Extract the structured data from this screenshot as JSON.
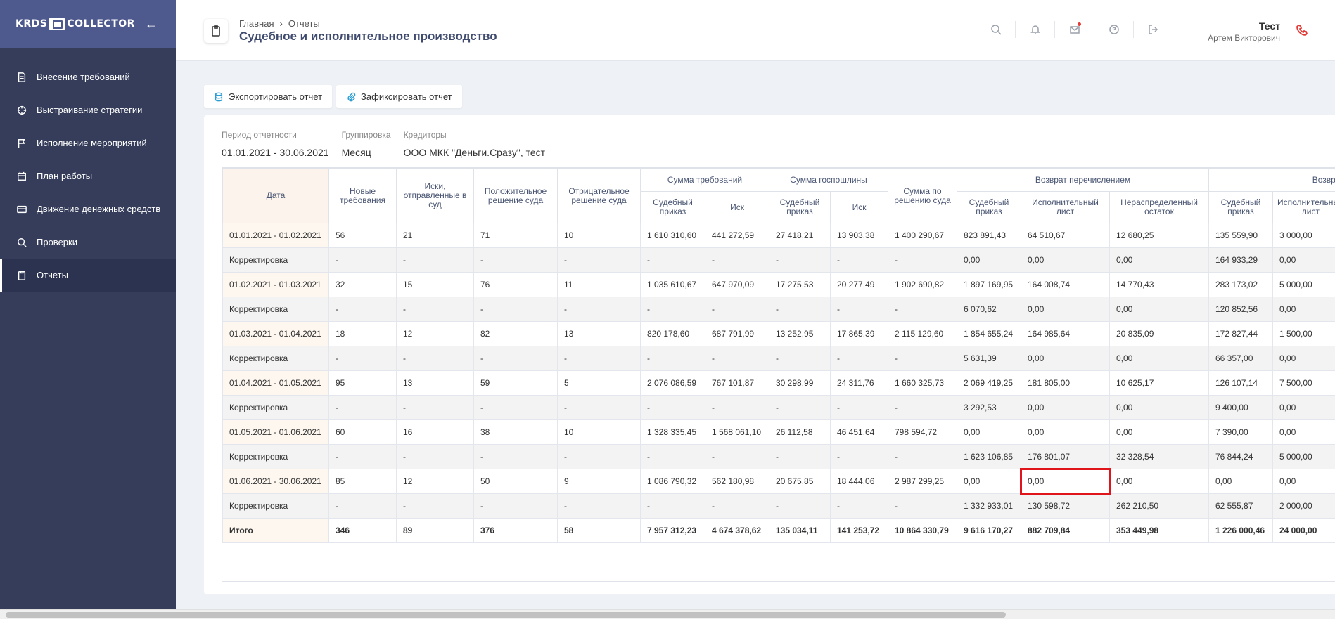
{
  "brand": {
    "left": "KRDS",
    "right": "COLLECTOR"
  },
  "sidebar": {
    "items": [
      {
        "label": "Внесение требований",
        "icon": "document-icon"
      },
      {
        "label": "Выстраивание стратегии",
        "icon": "crosshair-icon"
      },
      {
        "label": "Исполнение мероприятий",
        "icon": "flag-icon"
      },
      {
        "label": "План работы",
        "icon": "calendar-icon"
      },
      {
        "label": "Движение денежных средств",
        "icon": "card-icon"
      },
      {
        "label": "Проверки",
        "icon": "search-icon"
      },
      {
        "label": "Отчеты",
        "icon": "clipboard-icon",
        "active": true
      }
    ]
  },
  "header": {
    "breadcrumb": [
      "Главная",
      "Отчеты"
    ],
    "title": "Судебное и исполнительное производство",
    "user_name": "Тест",
    "user_sub": "Артем Викторович"
  },
  "toolbar": {
    "export_label": "Экспортировать отчет",
    "fix_label": "Зафиксировать отчет"
  },
  "filters": [
    {
      "label": "Период отчетности",
      "value": "01.01.2021 - 30.06.2021"
    },
    {
      "label": "Группировка",
      "value": "Месяц"
    },
    {
      "label": "Кредиторы",
      "value": "ООО МКК \"Деньги.Сразу\", тест"
    }
  ],
  "table": {
    "headers": {
      "date": "Дата",
      "new": "Новые требования",
      "claims": "Иски, отправленные в суд",
      "positive": "Положительное решение суда",
      "negative": "Отрицательное решение суда",
      "sum_req": "Сумма требований",
      "sum_req_order": "Судебный приказ",
      "sum_req_claim": "Иск",
      "duty": "Сумма госпошлины",
      "duty_order": "Судебный приказ",
      "duty_claim": "Иск",
      "court_sum": "Сумма по решению суда",
      "refund": "Возврат перечислением",
      "refund_order": "Судебный приказ",
      "refund_writ": "Исполнительный лист",
      "refund_rest": "Нераспределенный остаток",
      "return2": "Возврат",
      "return2_order": "Судебный приказ",
      "return2_writ": "Исполнительный лист"
    },
    "rows": [
      {
        "type": "period",
        "cells": [
          "01.01.2021 - 01.02.2021",
          "56",
          "21",
          "71",
          "10",
          "1 610 310,60",
          "441 272,59",
          "27 418,21",
          "13 903,38",
          "1 400 290,67",
          "823 891,43",
          "64 510,67",
          "12 680,25",
          "135 559,90",
          "3 000,00"
        ]
      },
      {
        "type": "corr",
        "cells": [
          "Корректировка",
          "-",
          "-",
          "-",
          "-",
          "-",
          "-",
          "-",
          "-",
          "-",
          "0,00",
          "0,00",
          "0,00",
          "164 933,29",
          "0,00"
        ]
      },
      {
        "type": "period",
        "cells": [
          "01.02.2021 - 01.03.2021",
          "32",
          "15",
          "76",
          "11",
          "1 035 610,67",
          "647 970,09",
          "17 275,53",
          "20 277,49",
          "1 902 690,82",
          "1 897 169,95",
          "164 008,74",
          "14 770,43",
          "283 173,02",
          "5 000,00"
        ]
      },
      {
        "type": "corr",
        "cells": [
          "Корректировка",
          "-",
          "-",
          "-",
          "-",
          "-",
          "-",
          "-",
          "-",
          "-",
          "6 070,62",
          "0,00",
          "0,00",
          "120 852,56",
          "0,00"
        ]
      },
      {
        "type": "period",
        "cells": [
          "01.03.2021 - 01.04.2021",
          "18",
          "12",
          "82",
          "13",
          "820 178,60",
          "687 791,99",
          "13 252,95",
          "17 865,39",
          "2 115 129,60",
          "1 854 655,24",
          "164 985,64",
          "20 835,09",
          "172 827,44",
          "1 500,00"
        ]
      },
      {
        "type": "corr",
        "cells": [
          "Корректировка",
          "-",
          "-",
          "-",
          "-",
          "-",
          "-",
          "-",
          "-",
          "-",
          "5 631,39",
          "0,00",
          "0,00",
          "66 357,00",
          "0,00"
        ]
      },
      {
        "type": "period",
        "cells": [
          "01.04.2021 - 01.05.2021",
          "95",
          "13",
          "59",
          "5",
          "2 076 086,59",
          "767 101,87",
          "30 298,99",
          "24 311,76",
          "1 660 325,73",
          "2 069 419,25",
          "181 805,00",
          "10 625,17",
          "126 107,14",
          "7 500,00"
        ]
      },
      {
        "type": "corr",
        "cells": [
          "Корректировка",
          "-",
          "-",
          "-",
          "-",
          "-",
          "-",
          "-",
          "-",
          "-",
          "3 292,53",
          "0,00",
          "0,00",
          "9 400,00",
          "0,00"
        ]
      },
      {
        "type": "period",
        "cells": [
          "01.05.2021 - 01.06.2021",
          "60",
          "16",
          "38",
          "10",
          "1 328 335,45",
          "1 568 061,10",
          "26 112,58",
          "46 451,64",
          "798 594,72",
          "0,00",
          "0,00",
          "0,00",
          "7 390,00",
          "0,00"
        ]
      },
      {
        "type": "corr",
        "cells": [
          "Корректировка",
          "-",
          "-",
          "-",
          "-",
          "-",
          "-",
          "-",
          "-",
          "-",
          "1 623 106,85",
          "176 801,07",
          "32 328,54",
          "76 844,24",
          "5 000,00"
        ]
      },
      {
        "type": "period",
        "cells": [
          "01.06.2021 - 30.06.2021",
          "85",
          "12",
          "50",
          "9",
          "1 086 790,32",
          "562 180,98",
          "20 675,85",
          "18 444,06",
          "2 987 299,25",
          "0,00",
          "0,00",
          "0,00",
          "0,00",
          "0,00"
        ],
        "highlight": 11
      },
      {
        "type": "corr",
        "cells": [
          "Корректировка",
          "-",
          "-",
          "-",
          "-",
          "-",
          "-",
          "-",
          "-",
          "-",
          "1 332 933,01",
          "130 598,72",
          "262 210,50",
          "62 555,87",
          "2 000,00"
        ]
      },
      {
        "type": "total",
        "cells": [
          "Итого",
          "346",
          "89",
          "376",
          "58",
          "7 957 312,23",
          "4 674 378,62",
          "135 034,11",
          "141 253,72",
          "10 864 330,79",
          "9 616 170,27",
          "882 709,84",
          "353 449,98",
          "1 226 000,46",
          "24 000,00"
        ]
      }
    ]
  },
  "colors": {
    "sidebar": "#353d5a",
    "sidebar_head": "#4e5a8e",
    "highlight": "#e0151b",
    "accent": "#2a9dd4"
  }
}
